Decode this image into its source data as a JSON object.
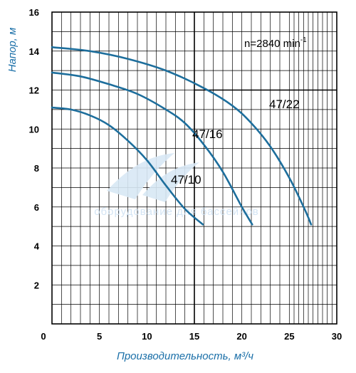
{
  "chart_data": {
    "type": "line",
    "title": "",
    "xlabel": "Производительность, м³/ч",
    "ylabel": "Напор, м",
    "xlim": [
      0,
      30
    ],
    "ylim": [
      0,
      16
    ],
    "x_ticks": [
      "0",
      "5",
      "10",
      "15",
      "20",
      "25",
      "30"
    ],
    "y_ticks": [
      "2",
      "4",
      "6",
      "8",
      "10",
      "12",
      "14",
      "16"
    ],
    "grid": true,
    "speed_label": {
      "text": "n=2840 min",
      "sup": "-1"
    },
    "series": [
      {
        "name": "47/10",
        "x": [
          0,
          2,
          4,
          6,
          8,
          10,
          12,
          14,
          15.9
        ],
        "y": [
          11.1,
          11.0,
          10.7,
          10.2,
          9.4,
          8.4,
          7.1,
          5.9,
          5.1
        ]
      },
      {
        "name": "47/16",
        "x": [
          0,
          3,
          6,
          9,
          12,
          14,
          16,
          18,
          20,
          21.1
        ],
        "y": [
          12.9,
          12.7,
          12.3,
          11.8,
          11.0,
          10.3,
          9.2,
          7.8,
          6.0,
          5.1
        ]
      },
      {
        "name": "47/22",
        "x": [
          0,
          4,
          8,
          12,
          16,
          19,
          21,
          23,
          25,
          26.6,
          27.3
        ],
        "y": [
          14.2,
          14.0,
          13.6,
          13.0,
          12.1,
          11.2,
          10.3,
          9.1,
          7.5,
          5.9,
          5.1
        ]
      }
    ],
    "watermark": {
      "line1": "",
      "line2": "оборудование для бассейнов"
    }
  }
}
